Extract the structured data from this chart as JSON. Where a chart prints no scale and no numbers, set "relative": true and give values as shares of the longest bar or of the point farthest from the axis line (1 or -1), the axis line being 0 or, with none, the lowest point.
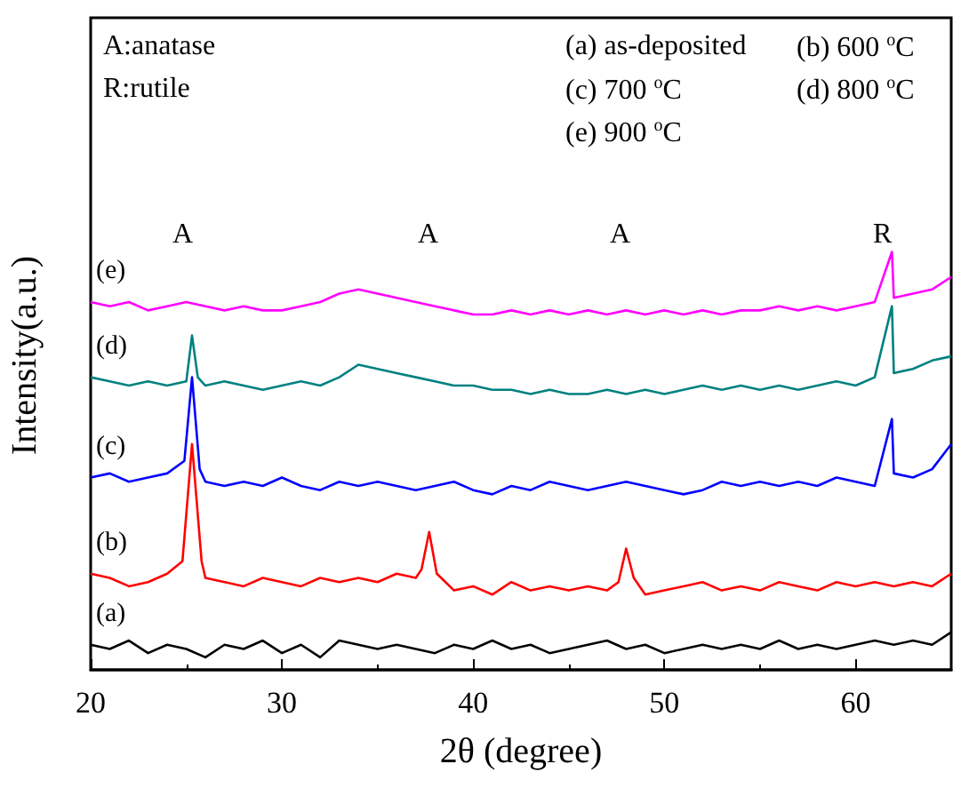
{
  "chart_data": {
    "type": "line",
    "relative": true,
    "xlabel": "2θ (degree)",
    "ylabel": "Intensity(a.u.)",
    "xlim": [
      20,
      65
    ],
    "xticks": [
      20,
      30,
      40,
      50,
      60
    ],
    "grid": false,
    "legend": false,
    "marker": "none",
    "line_style": "solid",
    "annotations": [
      "A:anatase",
      "R:rutile",
      "(a) as-deposited",
      "(b) 600 $^{o}$C",
      "(c) 700 $^{o}$C",
      "(d) 800 $^{o}$C",
      "(e) 900 $^{o}$C",
      "A",
      "A",
      "A",
      "R"
    ],
    "series": [
      {
        "name": "(a)",
        "color": "#000000",
        "x": [
          20,
          21,
          22,
          23,
          24,
          25,
          26,
          27,
          28,
          29,
          30,
          31,
          32,
          33,
          34,
          35,
          36,
          37,
          38,
          39,
          40,
          41,
          42,
          43,
          44,
          45,
          46,
          47,
          48,
          49,
          50,
          51,
          52,
          53,
          54,
          55,
          56,
          57,
          58,
          59,
          60,
          61,
          62,
          63,
          64,
          65
        ],
        "values": [
          0.06,
          0.05,
          0.07,
          0.04,
          0.06,
          0.05,
          0.03,
          0.06,
          0.05,
          0.07,
          0.04,
          0.06,
          0.03,
          0.07,
          0.06,
          0.05,
          0.06,
          0.05,
          0.04,
          0.06,
          0.05,
          0.07,
          0.05,
          0.06,
          0.04,
          0.05,
          0.06,
          0.07,
          0.05,
          0.06,
          0.04,
          0.05,
          0.06,
          0.05,
          0.06,
          0.05,
          0.07,
          0.05,
          0.06,
          0.05,
          0.06,
          0.07,
          0.06,
          0.07,
          0.06,
          0.09
        ]
      },
      {
        "name": "(b)",
        "color": "#ff0000",
        "x": [
          20,
          21,
          22,
          23,
          24,
          24.8,
          25.3,
          25.8,
          26,
          27,
          28,
          29,
          30,
          31,
          32,
          33,
          34,
          35,
          36,
          37,
          37.3,
          37.7,
          38.1,
          39,
          40,
          41,
          42,
          43,
          44,
          45,
          46,
          47,
          47.6,
          48,
          48.4,
          49,
          50,
          51,
          52,
          53,
          54,
          55,
          56,
          57,
          58,
          59,
          60,
          61,
          62,
          63,
          64,
          65
        ],
        "values": [
          0.23,
          0.22,
          0.2,
          0.21,
          0.23,
          0.26,
          0.54,
          0.26,
          0.22,
          0.21,
          0.2,
          0.22,
          0.21,
          0.2,
          0.22,
          0.21,
          0.22,
          0.21,
          0.23,
          0.22,
          0.24,
          0.33,
          0.23,
          0.19,
          0.2,
          0.18,
          0.21,
          0.19,
          0.2,
          0.19,
          0.2,
          0.19,
          0.21,
          0.29,
          0.22,
          0.18,
          0.19,
          0.2,
          0.21,
          0.19,
          0.2,
          0.19,
          0.21,
          0.2,
          0.19,
          0.21,
          0.2,
          0.21,
          0.2,
          0.21,
          0.2,
          0.23
        ]
      },
      {
        "name": "(c)",
        "color": "#0000ff",
        "x": [
          20,
          21,
          22,
          23,
          24,
          24.9,
          25.3,
          25.7,
          26,
          27,
          28,
          29,
          30,
          31,
          32,
          33,
          34,
          35,
          36,
          37,
          38,
          39,
          40,
          41,
          42,
          43,
          44,
          45,
          46,
          47,
          48,
          49,
          50,
          51,
          52,
          53,
          54,
          55,
          56,
          57,
          58,
          59,
          60,
          61,
          61.9,
          62,
          63,
          64,
          65
        ],
        "values": [
          0.46,
          0.47,
          0.45,
          0.46,
          0.47,
          0.5,
          0.7,
          0.48,
          0.45,
          0.44,
          0.45,
          0.44,
          0.46,
          0.44,
          0.43,
          0.45,
          0.44,
          0.45,
          0.44,
          0.43,
          0.44,
          0.45,
          0.43,
          0.42,
          0.44,
          0.43,
          0.45,
          0.44,
          0.43,
          0.44,
          0.45,
          0.44,
          0.43,
          0.42,
          0.43,
          0.45,
          0.44,
          0.45,
          0.44,
          0.45,
          0.44,
          0.46,
          0.45,
          0.44,
          0.6,
          0.47,
          0.46,
          0.48,
          0.54
        ]
      },
      {
        "name": "(d)",
        "color": "#008080",
        "x": [
          20,
          21,
          22,
          23,
          24,
          25,
          25.3,
          25.6,
          26,
          27,
          28,
          29,
          30,
          31,
          32,
          33,
          34,
          35,
          36,
          37,
          38,
          39,
          40,
          41,
          42,
          43,
          44,
          45,
          46,
          47,
          48,
          49,
          50,
          51,
          52,
          53,
          54,
          55,
          56,
          57,
          58,
          59,
          60,
          61,
          61.9,
          62,
          63,
          64,
          65
        ],
        "values": [
          0.7,
          0.69,
          0.68,
          0.69,
          0.68,
          0.69,
          0.8,
          0.7,
          0.68,
          0.69,
          0.68,
          0.67,
          0.68,
          0.69,
          0.68,
          0.7,
          0.73,
          0.72,
          0.71,
          0.7,
          0.69,
          0.68,
          0.68,
          0.67,
          0.67,
          0.66,
          0.67,
          0.66,
          0.66,
          0.67,
          0.66,
          0.67,
          0.66,
          0.67,
          0.68,
          0.67,
          0.68,
          0.67,
          0.68,
          0.67,
          0.68,
          0.69,
          0.68,
          0.7,
          0.87,
          0.71,
          0.72,
          0.74,
          0.75
        ]
      },
      {
        "name": "(e)",
        "color": "#ff00ff",
        "x": [
          20,
          21,
          22,
          23,
          24,
          25,
          26,
          27,
          28,
          29,
          30,
          31,
          32,
          33,
          34,
          35,
          36,
          37,
          38,
          39,
          40,
          41,
          42,
          43,
          44,
          45,
          46,
          47,
          48,
          49,
          50,
          51,
          52,
          53,
          54,
          55,
          56,
          57,
          58,
          59,
          60,
          61,
          61.9,
          62,
          63,
          64,
          65
        ],
        "values": [
          0.88,
          0.87,
          0.88,
          0.86,
          0.87,
          0.88,
          0.87,
          0.86,
          0.87,
          0.86,
          0.86,
          0.87,
          0.88,
          0.9,
          0.91,
          0.9,
          0.89,
          0.88,
          0.87,
          0.86,
          0.85,
          0.85,
          0.86,
          0.85,
          0.86,
          0.85,
          0.86,
          0.85,
          0.86,
          0.85,
          0.86,
          0.85,
          0.86,
          0.85,
          0.86,
          0.86,
          0.87,
          0.86,
          0.87,
          0.86,
          0.87,
          0.88,
          1,
          0.89,
          0.9,
          0.91,
          0.94
        ]
      }
    ]
  }
}
